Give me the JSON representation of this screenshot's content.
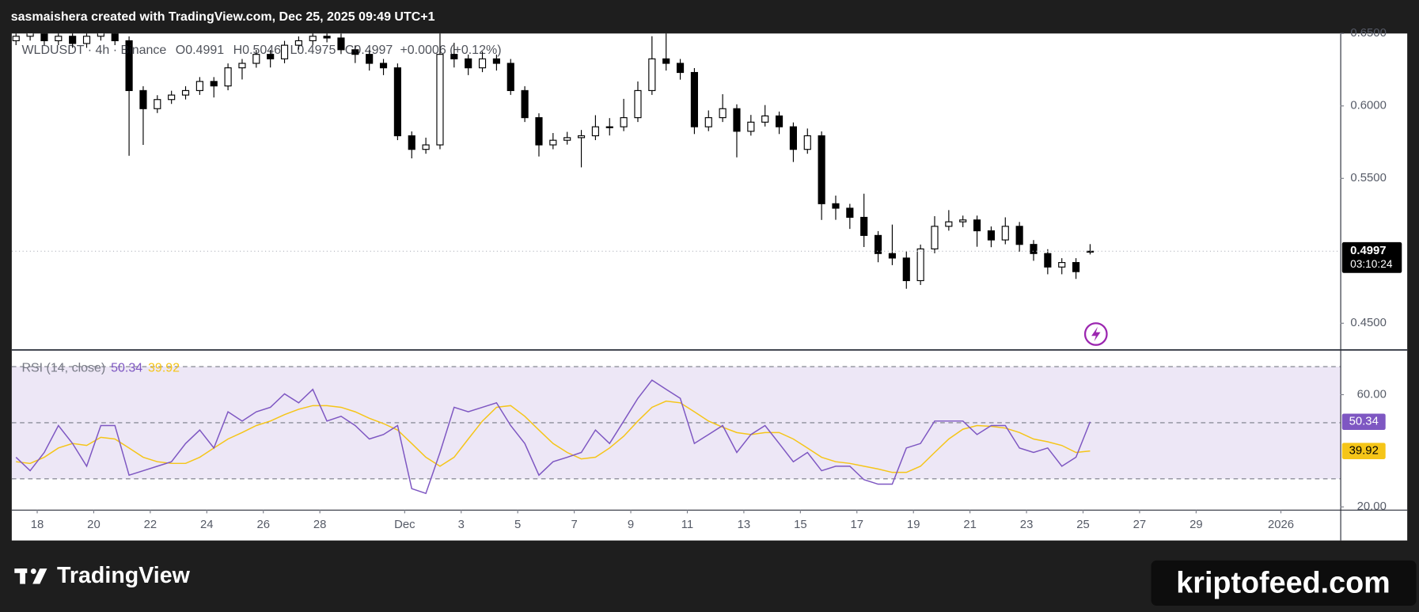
{
  "page": {
    "credit": "sasmaishera created with TradingView.com, Dec 25, 2025 09:49 UTC+1",
    "logo": "TradingView",
    "watermark": "kriptofeed.com"
  },
  "chart_data": [
    {
      "type": "candlestick",
      "symbol": "WLDUSDT · 4h · Binance",
      "ohlc_labels": [
        "O",
        "H",
        "L",
        "C"
      ],
      "change": "+0.0006 (+0.12%)",
      "countdown": "03:10:24",
      "up_color": "#ffffff",
      "down_color": "#000000",
      "wick_color": "#000000",
      "xlim": [
        17.1,
        64.1
      ],
      "ylim": [
        0.4319,
        0.65
      ],
      "yticks": [
        {
          "value": 0.65,
          "label": "0.6500"
        },
        {
          "value": 0.6,
          "label": "0.6000"
        },
        {
          "value": 0.55,
          "label": "0.5500"
        },
        {
          "value": 0.45,
          "label": "0.4500"
        }
      ],
      "x": [
        17.25,
        17.75,
        18.25,
        18.75,
        19.25,
        19.75,
        20.25,
        20.75,
        21.25,
        21.75,
        22.25,
        22.75,
        23.25,
        23.75,
        24.25,
        24.75,
        25.25,
        25.75,
        26.25,
        26.75,
        27.25,
        27.75,
        28.25,
        28.75,
        29.25,
        29.75,
        30.25,
        30.75,
        31.25,
        31.75,
        32.25,
        32.75,
        33.25,
        33.75,
        34.25,
        34.75,
        35.25,
        35.75,
        36.25,
        36.75,
        37.25,
        37.75,
        38.25,
        38.75,
        39.25,
        39.75,
        40.25,
        40.75,
        41.25,
        41.75,
        42.25,
        42.75,
        43.25,
        43.75,
        44.25,
        44.75,
        45.25,
        45.75,
        46.25,
        46.75,
        47.25,
        47.75,
        48.25,
        48.75,
        49.25,
        49.75,
        50.25,
        50.75,
        51.25,
        51.75,
        52.25,
        52.75,
        53.25,
        53.75,
        54.25,
        54.75,
        55.25
      ],
      "open": [
        0.645,
        0.6481,
        0.6513,
        0.645,
        0.6481,
        0.6431,
        0.6481,
        0.6513,
        0.645,
        0.6106,
        0.5981,
        0.6044,
        0.6075,
        0.6106,
        0.6169,
        0.6138,
        0.6263,
        0.6294,
        0.6356,
        0.6325,
        0.6419,
        0.645,
        0.6481,
        0.6469,
        0.6388,
        0.6356,
        0.6294,
        0.6263,
        0.5794,
        0.57,
        0.5731,
        0.6356,
        0.6325,
        0.6263,
        0.6325,
        0.6294,
        0.6106,
        0.5919,
        0.5731,
        0.5763,
        0.5781,
        0.5794,
        0.5856,
        0.5856,
        0.5919,
        0.6106,
        0.6325,
        0.6294,
        0.6231,
        0.5856,
        0.5919,
        0.5981,
        0.5825,
        0.5888,
        0.5931,
        0.5856,
        0.57,
        0.5794,
        0.5325,
        0.5294,
        0.5231,
        0.5106,
        0.4981,
        0.495,
        0.4794,
        0.5013,
        0.5169,
        0.52,
        0.5213,
        0.5138,
        0.5075,
        0.5169,
        0.5044,
        0.4981,
        0.4888,
        0.4919,
        0.4991
      ],
      "high": [
        0.6511,
        0.6543,
        0.6543,
        0.6511,
        0.6511,
        0.6511,
        0.6543,
        0.6543,
        0.648,
        0.6136,
        0.6074,
        0.6105,
        0.6136,
        0.6199,
        0.6199,
        0.6293,
        0.6324,
        0.6386,
        0.6386,
        0.6449,
        0.648,
        0.6511,
        0.6521,
        0.6499,
        0.6418,
        0.6386,
        0.6324,
        0.6293,
        0.5824,
        0.5781,
        0.655,
        0.6436,
        0.6355,
        0.6375,
        0.6355,
        0.6324,
        0.6136,
        0.5949,
        0.5813,
        0.5821,
        0.5834,
        0.5936,
        0.5916,
        0.6049,
        0.6169,
        0.6481,
        0.6513,
        0.6324,
        0.6261,
        0.5969,
        0.6081,
        0.6011,
        0.5938,
        0.6006,
        0.5961,
        0.5886,
        0.5844,
        0.5824,
        0.5381,
        0.5324,
        0.5394,
        0.5136,
        0.5181,
        0.4996,
        0.5043,
        0.5239,
        0.5281,
        0.5243,
        0.5243,
        0.5168,
        0.5231,
        0.5199,
        0.5074,
        0.5011,
        0.4949,
        0.4949,
        0.5046
      ],
      "low": [
        0.642,
        0.6451,
        0.642,
        0.642,
        0.6401,
        0.6401,
        0.6451,
        0.642,
        0.5656,
        0.5731,
        0.5951,
        0.6014,
        0.6045,
        0.6076,
        0.6058,
        0.6108,
        0.6183,
        0.6264,
        0.6265,
        0.6295,
        0.6389,
        0.642,
        0.6439,
        0.6358,
        0.6296,
        0.6244,
        0.6213,
        0.5764,
        0.5638,
        0.567,
        0.5701,
        0.6265,
        0.6213,
        0.6233,
        0.6244,
        0.6076,
        0.5889,
        0.5651,
        0.5701,
        0.5733,
        0.5576,
        0.5764,
        0.5796,
        0.5826,
        0.5889,
        0.6076,
        0.6244,
        0.6181,
        0.5806,
        0.5826,
        0.5889,
        0.5645,
        0.5795,
        0.5858,
        0.5806,
        0.5613,
        0.567,
        0.5213,
        0.5214,
        0.5151,
        0.5026,
        0.4921,
        0.4901,
        0.4738,
        0.4764,
        0.4983,
        0.5139,
        0.5163,
        0.5028,
        0.5025,
        0.5045,
        0.4994,
        0.4931,
        0.4838,
        0.4838,
        0.4806,
        0.4975
      ],
      "close": [
        0.6481,
        0.6513,
        0.645,
        0.6481,
        0.6431,
        0.6481,
        0.6513,
        0.645,
        0.6106,
        0.5981,
        0.6044,
        0.6075,
        0.6106,
        0.6169,
        0.6138,
        0.6263,
        0.6294,
        0.6356,
        0.6325,
        0.6419,
        0.645,
        0.6481,
        0.6469,
        0.6388,
        0.6356,
        0.6294,
        0.6263,
        0.5794,
        0.57,
        0.5731,
        0.6356,
        0.6325,
        0.6263,
        0.6325,
        0.6294,
        0.6106,
        0.5919,
        0.5731,
        0.5763,
        0.5781,
        0.5794,
        0.5856,
        0.5856,
        0.5919,
        0.6106,
        0.6325,
        0.6294,
        0.6231,
        0.5856,
        0.5919,
        0.5981,
        0.5825,
        0.5888,
        0.5931,
        0.5856,
        0.57,
        0.5794,
        0.5325,
        0.5294,
        0.5231,
        0.5106,
        0.4981,
        0.495,
        0.4794,
        0.5013,
        0.5169,
        0.52,
        0.5213,
        0.5138,
        0.5075,
        0.5169,
        0.5044,
        0.4981,
        0.4888,
        0.4919,
        0.4856,
        0.4997
      ]
    },
    {
      "type": "line",
      "title": "RSI (14, close)",
      "xlim": [
        17.1,
        64.1
      ],
      "ylim": [
        19,
        75.8
      ],
      "yticks": [
        {
          "value": 60,
          "label": "60.00"
        },
        {
          "value": 20,
          "label": "20.00"
        }
      ],
      "levels": [
        70,
        50,
        30
      ],
      "band_color": "#ede7f6",
      "xticks": [
        18,
        20,
        22,
        24,
        26,
        28,
        {
          "value": 31,
          "label": "Dec"
        },
        {
          "value": 33,
          "label": "3"
        },
        {
          "value": 35,
          "label": "5"
        },
        {
          "value": 37,
          "label": "7"
        },
        {
          "value": 39,
          "label": "9"
        },
        {
          "value": 41,
          "label": "11"
        },
        {
          "value": 43,
          "label": "13"
        },
        {
          "value": 45,
          "label": "15"
        },
        {
          "value": 47,
          "label": "17"
        },
        {
          "value": 49,
          "label": "19"
        },
        {
          "value": 51,
          "label": "21"
        },
        {
          "value": 53,
          "label": "23"
        },
        {
          "value": 55,
          "label": "25"
        },
        {
          "value": 57,
          "label": "27"
        },
        {
          "value": 59,
          "label": "29"
        },
        {
          "value": 62,
          "label": "2026"
        }
      ],
      "x": [
        17.25,
        17.75,
        18.25,
        18.75,
        19.25,
        19.75,
        20.25,
        20.75,
        21.25,
        21.75,
        22.25,
        22.75,
        23.25,
        23.75,
        24.25,
        24.75,
        25.25,
        25.75,
        26.25,
        26.75,
        27.25,
        27.75,
        28.25,
        28.75,
        29.25,
        29.75,
        30.25,
        30.75,
        31.25,
        31.75,
        32.25,
        32.75,
        33.25,
        33.75,
        34.25,
        34.75,
        35.25,
        35.75,
        36.25,
        36.75,
        37.25,
        37.75,
        38.25,
        38.75,
        39.25,
        39.75,
        40.25,
        40.75,
        41.25,
        41.75,
        42.25,
        42.75,
        43.25,
        43.75,
        44.25,
        44.75,
        45.25,
        45.75,
        46.25,
        46.75,
        47.25,
        47.75,
        48.25,
        48.75,
        49.25,
        49.75,
        50.25,
        50.75,
        51.25,
        51.75,
        52.25,
        52.75,
        53.25,
        53.75,
        54.25,
        54.75,
        55.25
      ],
      "series": [
        {
          "color": "#7e57c2",
          "tag_text": "#ffffff",
          "values": [
            37.7,
            32.9,
            39.4,
            49.0,
            42.6,
            34.5,
            49.0,
            49.0,
            31.3,
            32.9,
            34.5,
            36.1,
            42.6,
            47.4,
            41.0,
            53.9,
            50.6,
            53.9,
            55.5,
            60.3,
            57.1,
            61.9,
            50.6,
            52.3,
            49.0,
            44.2,
            45.8,
            49.0,
            26.5,
            24.8,
            39.4,
            55.5,
            53.9,
            55.5,
            57.1,
            49.0,
            42.6,
            31.3,
            36.1,
            37.7,
            39.4,
            47.4,
            42.6,
            50.6,
            58.7,
            65.2,
            61.9,
            58.7,
            42.6,
            45.8,
            49.0,
            39.4,
            45.8,
            49.0,
            42.6,
            36.1,
            39.4,
            32.9,
            34.5,
            34.5,
            29.7,
            28.1,
            28.1,
            41.0,
            42.6,
            50.6,
            50.6,
            50.6,
            45.8,
            49.0,
            49.0,
            41.0,
            39.4,
            41.0,
            34.5,
            37.7,
            50.34
          ]
        },
        {
          "color": "#f5c518",
          "tag_text": "#000000",
          "values": [
            36.1,
            35.5,
            37.7,
            41.0,
            42.6,
            41.9,
            44.8,
            44.2,
            41.0,
            37.7,
            36.1,
            35.5,
            35.5,
            37.7,
            41.0,
            44.2,
            46.5,
            49.0,
            50.6,
            52.9,
            54.8,
            56.1,
            56.1,
            55.5,
            53.9,
            51.6,
            49.7,
            47.4,
            42.6,
            37.7,
            34.5,
            37.7,
            44.2,
            50.6,
            55.5,
            56.1,
            52.3,
            47.4,
            42.6,
            39.4,
            37.1,
            37.7,
            41.0,
            45.2,
            50.6,
            55.5,
            57.7,
            57.1,
            53.9,
            50.6,
            48.4,
            46.5,
            45.8,
            46.5,
            46.5,
            44.2,
            41.0,
            37.7,
            36.1,
            35.5,
            34.5,
            33.5,
            32.3,
            32.3,
            34.5,
            39.4,
            44.2,
            47.7,
            49.0,
            48.7,
            48.1,
            46.5,
            44.2,
            43.2,
            41.9,
            39.4,
            39.92
          ]
        }
      ]
    }
  ]
}
